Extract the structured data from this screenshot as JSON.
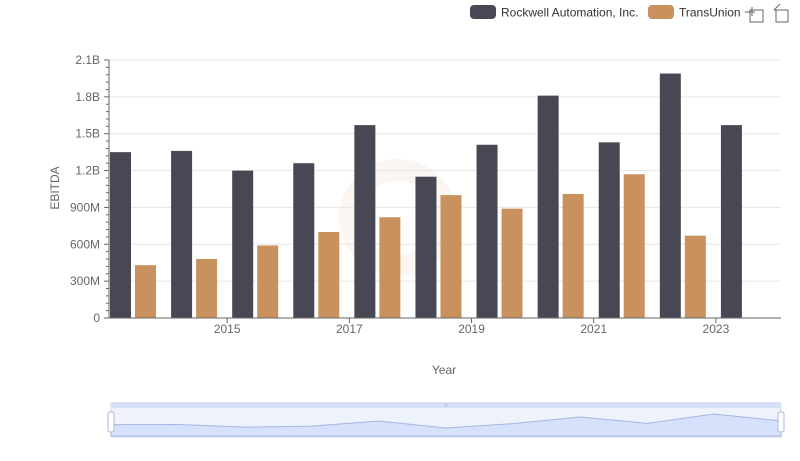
{
  "legend": {
    "items": [
      {
        "label": "Rockwell Automation, Inc.",
        "color": "#484854"
      },
      {
        "label": "TransUnion",
        "color": "#c8915e"
      }
    ]
  },
  "toolbar": {
    "icons": [
      "zoom-select-icon",
      "zoom-reset-icon"
    ]
  },
  "chart_data": {
    "type": "bar",
    "title": "",
    "xlabel": "Year",
    "ylabel": "EBITDA",
    "ylim": [
      0,
      2100000000
    ],
    "y_ticks": [
      {
        "value": 0,
        "label": "0"
      },
      {
        "value": 300000000,
        "label": "300M"
      },
      {
        "value": 600000000,
        "label": "600M"
      },
      {
        "value": 900000000,
        "label": "900M"
      },
      {
        "value": 1200000000,
        "label": "1.2B"
      },
      {
        "value": 1500000000,
        "label": "1.5B"
      },
      {
        "value": 1800000000,
        "label": "1.8B"
      },
      {
        "value": 2100000000,
        "label": "2.1B"
      }
    ],
    "categories": [
      "2014",
      "2015",
      "2016",
      "2017",
      "2018",
      "2019",
      "2020",
      "2021",
      "2022",
      "2023",
      "2024"
    ],
    "x_tick_labels": [
      "2015",
      "2017",
      "2019",
      "2021",
      "2023"
    ],
    "grid": true,
    "legend_position": "top-right",
    "series": [
      {
        "name": "Rockwell Automation, Inc.",
        "color": "#484854",
        "values": [
          1350000000,
          1360000000,
          1200000000,
          1260000000,
          1570000000,
          1150000000,
          1410000000,
          1810000000,
          1430000000,
          1990000000,
          1570000000
        ]
      },
      {
        "name": "TransUnion",
        "color": "#c8915e",
        "values": [
          430000000,
          480000000,
          590000000,
          700000000,
          820000000,
          1000000000,
          890000000,
          1010000000,
          1170000000,
          670000000,
          null
        ]
      }
    ]
  }
}
